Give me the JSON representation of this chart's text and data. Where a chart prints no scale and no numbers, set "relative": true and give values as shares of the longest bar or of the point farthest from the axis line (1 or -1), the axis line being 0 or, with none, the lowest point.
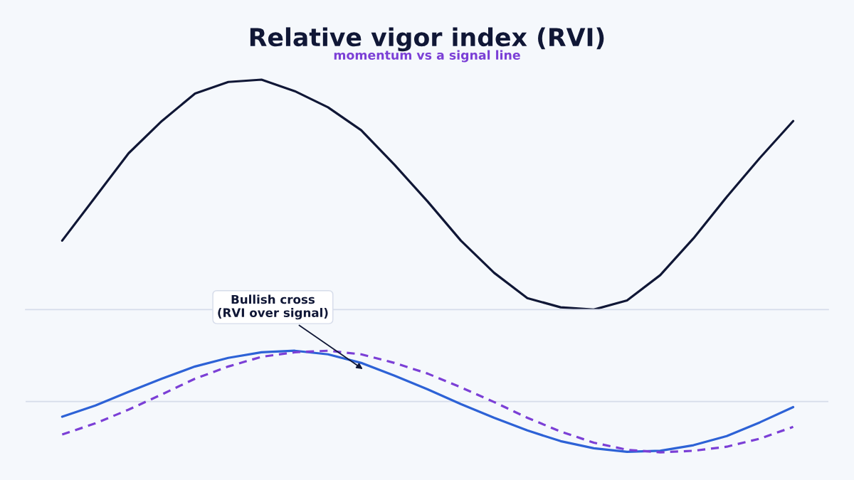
{
  "chart_data": [
    {
      "type": "line",
      "title": "Relative vigor index (RVI)",
      "subtitle": "momentum vs a signal line",
      "relative": true,
      "categories": [
        null,
        null,
        null,
        null,
        null,
        null,
        null,
        null,
        null,
        null,
        null,
        null,
        null,
        null,
        null,
        null,
        null,
        null,
        null,
        null,
        null,
        null,
        null
      ],
      "series": [
        {
          "color": "#101736",
          "line_style": "solid",
          "values": [
            0.3,
            0.49,
            0.68,
            0.82,
            0.94,
            0.99,
            1.0,
            0.95,
            0.88,
            0.78,
            0.63,
            0.47,
            0.3,
            0.16,
            0.05,
            0.01,
            0.0,
            0.04,
            0.15,
            0.31,
            0.49,
            0.66,
            0.82
          ]
        }
      ]
    },
    {
      "type": "line",
      "relative": true,
      "categories": [
        null,
        null,
        null,
        null,
        null,
        null,
        null,
        null,
        null,
        null,
        null,
        null,
        null,
        null,
        null,
        null,
        null,
        null,
        null,
        null,
        null,
        null,
        null
      ],
      "annotations": [
        "Bullish cross\n(RVI over signal)"
      ],
      "series": [
        {
          "color": "#2d62d6",
          "line_style": "solid",
          "values": [
            -0.3,
            -0.08,
            0.19,
            0.45,
            0.69,
            0.86,
            0.97,
            1.0,
            0.93,
            0.76,
            0.51,
            0.24,
            -0.05,
            -0.32,
            -0.57,
            -0.78,
            -0.92,
            -0.99,
            -0.97,
            -0.86,
            -0.68,
            -0.41,
            -0.11
          ]
        },
        {
          "color": "#7b3fd6",
          "line_style": "dashed",
          "values": [
            -0.65,
            -0.43,
            -0.16,
            0.14,
            0.45,
            0.69,
            0.88,
            0.97,
            1.0,
            0.93,
            0.76,
            0.55,
            0.28,
            -0.01,
            -0.32,
            -0.59,
            -0.81,
            -0.95,
            -1.0,
            -0.97,
            -0.89,
            -0.73,
            -0.5
          ]
        }
      ]
    }
  ]
}
